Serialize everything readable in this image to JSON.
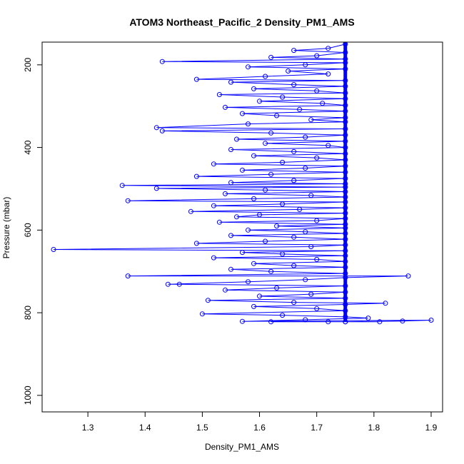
{
  "chart_data": {
    "type": "line",
    "title": "ATOM3 Northeast_Pacific_2 Density_PM1_AMS",
    "xlabel": "Density_PM1_AMS",
    "ylabel": "Pressure (mbar)",
    "xlim": [
      1.22,
      1.92
    ],
    "ylim": [
      1040,
      145
    ],
    "y_inverted": true,
    "x_ticks": [
      1.3,
      1.4,
      1.5,
      1.6,
      1.7,
      1.8,
      1.9
    ],
    "y_ticks": [
      200,
      400,
      600,
      800,
      1000
    ],
    "grid": false,
    "series_color": "#0000ff",
    "marker": "open-circle",
    "dominant_value": 1.75,
    "series": [
      {
        "points": [
          [
            1.75,
            150
          ],
          [
            1.72,
            160
          ],
          [
            1.66,
            165
          ],
          [
            1.75,
            170
          ],
          [
            1.7,
            178
          ],
          [
            1.62,
            182
          ],
          [
            1.75,
            186
          ],
          [
            1.43,
            192
          ],
          [
            1.75,
            195
          ],
          [
            1.68,
            200
          ],
          [
            1.58,
            205
          ],
          [
            1.75,
            210
          ],
          [
            1.65,
            215
          ],
          [
            1.72,
            222
          ],
          [
            1.61,
            228
          ],
          [
            1.49,
            235
          ],
          [
            1.75,
            238
          ],
          [
            1.55,
            242
          ],
          [
            1.66,
            248
          ],
          [
            1.75,
            252
          ],
          [
            1.59,
            258
          ],
          [
            1.7,
            263
          ],
          [
            1.75,
            268
          ],
          [
            1.53,
            272
          ],
          [
            1.64,
            278
          ],
          [
            1.75,
            282
          ],
          [
            1.6,
            288
          ],
          [
            1.71,
            293
          ],
          [
            1.75,
            298
          ],
          [
            1.54,
            303
          ],
          [
            1.67,
            308
          ],
          [
            1.75,
            312
          ],
          [
            1.57,
            318
          ],
          [
            1.63,
            323
          ],
          [
            1.75,
            328
          ],
          [
            1.69,
            333
          ],
          [
            1.75,
            338
          ],
          [
            1.58,
            343
          ],
          [
            1.42,
            352
          ],
          [
            1.75,
            355
          ],
          [
            1.43,
            360
          ],
          [
            1.62,
            365
          ],
          [
            1.75,
            370
          ],
          [
            1.68,
            375
          ],
          [
            1.56,
            380
          ],
          [
            1.75,
            385
          ],
          [
            1.61,
            390
          ],
          [
            1.72,
            395
          ],
          [
            1.75,
            400
          ],
          [
            1.55,
            405
          ],
          [
            1.66,
            410
          ],
          [
            1.75,
            415
          ],
          [
            1.59,
            420
          ],
          [
            1.7,
            425
          ],
          [
            1.75,
            430
          ],
          [
            1.64,
            436
          ],
          [
            1.52,
            440
          ],
          [
            1.75,
            445
          ],
          [
            1.68,
            450
          ],
          [
            1.57,
            455
          ],
          [
            1.75,
            460
          ],
          [
            1.62,
            465
          ],
          [
            1.49,
            470
          ],
          [
            1.75,
            475
          ],
          [
            1.66,
            480
          ],
          [
            1.55,
            485
          ],
          [
            1.75,
            488
          ],
          [
            1.36,
            492
          ],
          [
            1.75,
            496
          ],
          [
            1.42,
            499
          ],
          [
            1.61,
            503
          ],
          [
            1.75,
            507
          ],
          [
            1.54,
            512
          ],
          [
            1.69,
            516
          ],
          [
            1.75,
            520
          ],
          [
            1.59,
            524
          ],
          [
            1.37,
            529
          ],
          [
            1.75,
            532
          ],
          [
            1.64,
            537
          ],
          [
            1.52,
            541
          ],
          [
            1.75,
            546
          ],
          [
            1.67,
            550
          ],
          [
            1.48,
            555
          ],
          [
            1.75,
            559
          ],
          [
            1.6,
            563
          ],
          [
            1.56,
            568
          ],
          [
            1.75,
            572
          ],
          [
            1.7,
            577
          ],
          [
            1.53,
            581
          ],
          [
            1.75,
            586
          ],
          [
            1.63,
            590
          ],
          [
            1.75,
            595
          ],
          [
            1.58,
            600
          ],
          [
            1.68,
            604
          ],
          [
            1.75,
            608
          ],
          [
            1.55,
            613
          ],
          [
            1.66,
            617
          ],
          [
            1.75,
            622
          ],
          [
            1.61,
            627
          ],
          [
            1.49,
            632
          ],
          [
            1.75,
            636
          ],
          [
            1.69,
            640
          ],
          [
            1.24,
            647
          ],
          [
            1.75,
            650
          ],
          [
            1.57,
            654
          ],
          [
            1.64,
            658
          ],
          [
            1.75,
            662
          ],
          [
            1.52,
            667
          ],
          [
            1.7,
            671
          ],
          [
            1.75,
            676
          ],
          [
            1.59,
            681
          ],
          [
            1.66,
            686
          ],
          [
            1.75,
            690
          ],
          [
            1.55,
            695
          ],
          [
            1.62,
            700
          ],
          [
            1.75,
            705
          ],
          [
            1.37,
            711
          ],
          [
            1.86,
            711
          ],
          [
            1.75,
            715
          ],
          [
            1.68,
            720
          ],
          [
            1.58,
            725
          ],
          [
            1.44,
            731
          ],
          [
            1.46,
            731
          ],
          [
            1.75,
            735
          ],
          [
            1.63,
            740
          ],
          [
            1.54,
            745
          ],
          [
            1.75,
            750
          ],
          [
            1.69,
            755
          ],
          [
            1.6,
            760
          ],
          [
            1.75,
            765
          ],
          [
            1.51,
            770
          ],
          [
            1.66,
            775
          ],
          [
            1.82,
            777
          ],
          [
            1.75,
            780
          ],
          [
            1.59,
            785
          ],
          [
            1.7,
            790
          ],
          [
            1.75,
            795
          ],
          [
            1.5,
            803
          ],
          [
            1.64,
            806
          ],
          [
            1.75,
            810
          ],
          [
            1.79,
            813
          ],
          [
            1.68,
            817
          ],
          [
            1.57,
            821
          ],
          [
            1.9,
            818
          ],
          [
            1.85,
            820
          ],
          [
            1.75,
            822
          ],
          [
            1.62,
            822
          ],
          [
            1.81,
            822
          ],
          [
            1.72,
            822
          ],
          [
            1.75,
            822
          ]
        ]
      }
    ]
  }
}
